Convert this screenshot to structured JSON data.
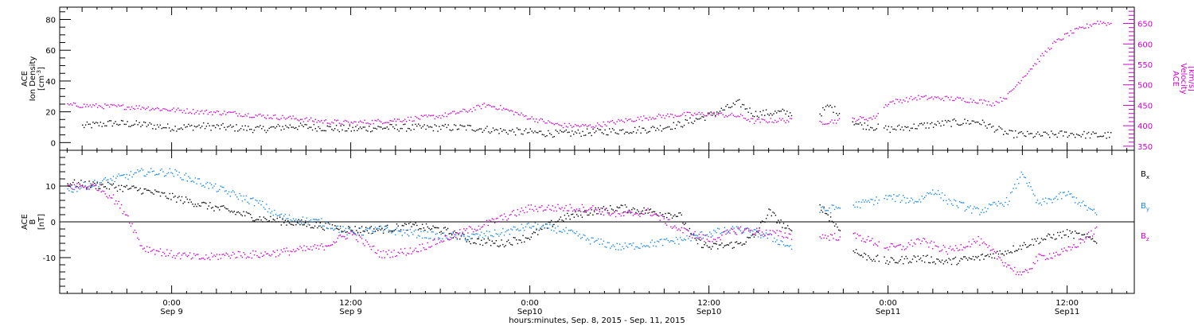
{
  "chart_data": [
    {
      "type": "scatter",
      "panel": "top",
      "ylabel_left": [
        "ACE",
        "Ion Density",
        "[cm",
        "-3",
        "]"
      ],
      "ylabel_right": [
        "ACE",
        "Velocity",
        "[km/s]"
      ],
      "ylim_left": [
        -5,
        88
      ],
      "yticks_left": [
        "0",
        "20",
        "40",
        "60",
        "80"
      ],
      "yticks_left_values": [
        0,
        20,
        40,
        60,
        80
      ],
      "ylim_right": [
        340,
        690
      ],
      "yticks_right": [
        "350",
        "400",
        "450",
        "500",
        "550",
        "600",
        "650"
      ],
      "yticks_right_values": [
        350,
        400,
        450,
        500,
        550,
        600,
        650
      ],
      "colors": {
        "density": "#000000",
        "velocity": "#cc00cc"
      },
      "series": [
        {
          "axis": "left",
          "points": [
            [
              -6,
              11
            ],
            [
              -4,
              13
            ],
            [
              -2,
              12
            ],
            [
              0,
              10
            ],
            [
              2,
              11
            ],
            [
              4,
              10
            ],
            [
              6,
              9
            ],
            [
              8,
              11
            ],
            [
              10,
              10
            ],
            [
              12,
              9
            ],
            [
              14,
              10
            ],
            [
              16,
              10
            ],
            [
              18,
              10
            ],
            [
              20,
              10
            ],
            [
              22,
              8
            ],
            [
              24,
              7
            ],
            [
              26,
              6
            ],
            [
              28,
              7
            ],
            [
              30,
              8
            ],
            [
              32,
              9
            ],
            [
              34,
              12
            ],
            [
              36,
              18
            ],
            [
              38,
              26
            ],
            [
              39,
              19
            ],
            [
              41,
              20
            ],
            [
              43,
              16
            ],
            [
              44,
              24
            ],
            [
              46,
              12
            ],
            [
              48,
              9
            ],
            [
              50,
              11
            ],
            [
              52,
              13
            ],
            [
              54,
              14
            ],
            [
              56,
              6
            ],
            [
              58,
              5
            ],
            [
              60,
              6
            ],
            [
              62,
              5
            ],
            [
              63,
              5
            ]
          ]
        },
        {
          "axis": "right",
          "points": [
            [
              -7,
              452
            ],
            [
              -4,
              448
            ],
            [
              -2,
              446
            ],
            [
              0,
              440
            ],
            [
              2,
              435
            ],
            [
              4,
              432
            ],
            [
              6,
              425
            ],
            [
              8,
              420
            ],
            [
              10,
              412
            ],
            [
              12,
              408
            ],
            [
              14,
              412
            ],
            [
              16,
              418
            ],
            [
              18,
              425
            ],
            [
              20,
              440
            ],
            [
              21,
              452
            ],
            [
              22,
              445
            ],
            [
              24,
              420
            ],
            [
              26,
              402
            ],
            [
              28,
              400
            ],
            [
              30,
              412
            ],
            [
              32,
              422
            ],
            [
              34,
              428
            ],
            [
              36,
              430
            ],
            [
              38,
              425
            ],
            [
              39,
              412
            ],
            [
              41,
              415
            ],
            [
              43,
              408
            ],
            [
              46,
              418
            ],
            [
              47,
              420
            ],
            [
              48,
              458
            ],
            [
              50,
              470
            ],
            [
              52,
              468
            ],
            [
              54,
              462
            ],
            [
              55,
              455
            ],
            [
              56,
              475
            ],
            [
              57,
              520
            ],
            [
              58,
              560
            ],
            [
              59,
              600
            ],
            [
              60,
              625
            ],
            [
              61,
              640
            ],
            [
              62,
              655
            ],
            [
              63,
              650
            ]
          ]
        }
      ]
    },
    {
      "type": "scatter",
      "panel": "bottom",
      "ylabel": [
        "ACE",
        "B",
        "[nT]"
      ],
      "ylim": [
        -20,
        20
      ],
      "yticks": [
        "10",
        "0",
        "-10"
      ],
      "yticks_values": [
        10,
        0,
        -10
      ],
      "zero_line": true,
      "legend_placement": "right",
      "series": [
        {
          "name": "B",
          "subscript": "x",
          "color": "#000000",
          "points": [
            [
              -7,
              11
            ],
            [
              -4,
              10
            ],
            [
              -2,
              9
            ],
            [
              0,
              7
            ],
            [
              2,
              5
            ],
            [
              4,
              3
            ],
            [
              6,
              1
            ],
            [
              8,
              0
            ],
            [
              10,
              -1
            ],
            [
              12,
              -2
            ],
            [
              14,
              -2
            ],
            [
              16,
              -1
            ],
            [
              18,
              -2
            ],
            [
              20,
              -5
            ],
            [
              22,
              -6
            ],
            [
              24,
              -4
            ],
            [
              26,
              1
            ],
            [
              28,
              3
            ],
            [
              30,
              4
            ],
            [
              32,
              3
            ],
            [
              34,
              2
            ],
            [
              35,
              -5
            ],
            [
              36,
              -7
            ],
            [
              38,
              -6
            ],
            [
              39,
              -4
            ],
            [
              40,
              3
            ],
            [
              42,
              -5
            ],
            [
              43,
              7
            ],
            [
              46,
              -9
            ],
            [
              48,
              -11
            ],
            [
              50,
              -10
            ],
            [
              52,
              -11
            ],
            [
              54,
              -10
            ],
            [
              56,
              -8
            ],
            [
              58,
              -5
            ],
            [
              60,
              -3
            ],
            [
              62,
              -5
            ]
          ]
        },
        {
          "name": "B",
          "subscript": "y",
          "color": "#1a88e6",
          "points": [
            [
              -7,
              9
            ],
            [
              -4,
              12
            ],
            [
              -2,
              14
            ],
            [
              0,
              14
            ],
            [
              2,
              11
            ],
            [
              4,
              8
            ],
            [
              6,
              5
            ],
            [
              7,
              2
            ],
            [
              8,
              1
            ],
            [
              10,
              0
            ],
            [
              12,
              -3
            ],
            [
              14,
              -2
            ],
            [
              16,
              -3
            ],
            [
              18,
              -4
            ],
            [
              20,
              -4
            ],
            [
              22,
              -3
            ],
            [
              24,
              -1
            ],
            [
              26,
              -2
            ],
            [
              28,
              -5
            ],
            [
              30,
              -7
            ],
            [
              32,
              -6
            ],
            [
              34,
              -5
            ],
            [
              36,
              -3
            ],
            [
              38,
              -2
            ],
            [
              40,
              -4
            ],
            [
              42,
              -8
            ],
            [
              43,
              3
            ],
            [
              46,
              5
            ],
            [
              48,
              7
            ],
            [
              50,
              6
            ],
            [
              51,
              9
            ],
            [
              52,
              6
            ],
            [
              54,
              3
            ],
            [
              56,
              6
            ],
            [
              57,
              14
            ],
            [
              58,
              5
            ],
            [
              60,
              8
            ],
            [
              62,
              2
            ]
          ]
        },
        {
          "name": "B",
          "subscript": "z",
          "color": "#cc00cc",
          "points": [
            [
              -7,
              10
            ],
            [
              -5,
              10
            ],
            [
              -4,
              7
            ],
            [
              -3,
              2
            ],
            [
              -2,
              -7
            ],
            [
              0,
              -9
            ],
            [
              2,
              -10
            ],
            [
              4,
              -9
            ],
            [
              6,
              -9
            ],
            [
              8,
              -8
            ],
            [
              10,
              -7
            ],
            [
              12,
              -3
            ],
            [
              14,
              -9
            ],
            [
              16,
              -8
            ],
            [
              18,
              -5
            ],
            [
              20,
              -2
            ],
            [
              22,
              1
            ],
            [
              24,
              4
            ],
            [
              26,
              4
            ],
            [
              28,
              4
            ],
            [
              30,
              2
            ],
            [
              32,
              3
            ],
            [
              34,
              -2
            ],
            [
              36,
              -5
            ],
            [
              38,
              -2
            ],
            [
              40,
              -3
            ],
            [
              42,
              -4
            ],
            [
              43,
              -4
            ],
            [
              46,
              -4
            ],
            [
              48,
              -7
            ],
            [
              49,
              -7
            ],
            [
              50,
              -5
            ],
            [
              52,
              -8
            ],
            [
              54,
              -5
            ],
            [
              56,
              -12
            ],
            [
              57,
              -15
            ],
            [
              58,
              -10
            ],
            [
              60,
              -8
            ],
            [
              62,
              -2
            ]
          ]
        }
      ]
    }
  ],
  "x_axis": {
    "range_hours": [
      -7.5,
      64.5
    ],
    "ticks": [
      {
        "hours": 0,
        "time": "0:00",
        "date": "Sep 9"
      },
      {
        "hours": 12,
        "time": "12:00",
        "date": "Sep 9"
      },
      {
        "hours": 24,
        "time": "0:00",
        "date": "Sep10"
      },
      {
        "hours": 36,
        "time": "12:00",
        "date": "Sep10"
      },
      {
        "hours": 48,
        "time": "0:00",
        "date": "Sep11"
      },
      {
        "hours": 60,
        "time": "12:00",
        "date": "Sep11"
      }
    ],
    "minor_step_hours": 1,
    "label": "hours:minutes, Sep.  8, 2015 - Sep. 11, 2015"
  }
}
